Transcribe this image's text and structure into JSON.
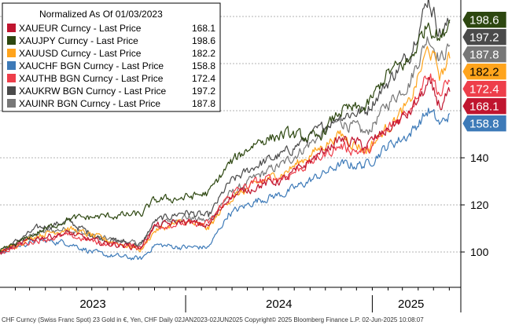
{
  "chart_data": {
    "type": "line",
    "legend_title": "Normalized As Of 01/03/2023",
    "legend_placement": "top-left",
    "grid": true,
    "ylim": [
      85,
      207
    ],
    "y_ticks": [
      100,
      120,
      140
    ],
    "x_range": [
      "2023-01-02",
      "2025-06-02"
    ],
    "x_tick_labels": [
      "2023",
      "2024",
      "2025"
    ],
    "series": [
      {
        "name": "XAUEUR Curncy - Last Price",
        "last_value": "168.1",
        "color": "#c0152f",
        "points": [
          [
            "2023-01-02",
            100
          ],
          [
            "2023-03-15",
            106
          ],
          [
            "2023-05-15",
            108
          ],
          [
            "2023-07-15",
            104
          ],
          [
            "2023-10-06",
            102
          ],
          [
            "2023-11-01",
            111
          ],
          [
            "2023-12-28",
            113
          ],
          [
            "2024-02-15",
            111
          ],
          [
            "2024-03-25",
            123
          ],
          [
            "2024-05-20",
            128
          ],
          [
            "2024-07-15",
            131
          ],
          [
            "2024-10-30",
            148
          ],
          [
            "2024-12-20",
            145
          ],
          [
            "2025-01-31",
            152
          ],
          [
            "2025-03-15",
            159
          ],
          [
            "2025-04-21",
            171
          ],
          [
            "2025-05-15",
            162
          ],
          [
            "2025-06-02",
            168.1
          ]
        ]
      },
      {
        "name": "XAUJPY Curncy - Last Price",
        "last_value": "198.6",
        "color": "#2d4710",
        "points": [
          [
            "2023-01-02",
            100
          ],
          [
            "2023-03-15",
            108
          ],
          [
            "2023-05-15",
            114
          ],
          [
            "2023-07-15",
            115
          ],
          [
            "2023-10-06",
            116
          ],
          [
            "2023-11-01",
            122
          ],
          [
            "2023-12-28",
            123
          ],
          [
            "2024-02-15",
            125
          ],
          [
            "2024-03-25",
            137
          ],
          [
            "2024-05-20",
            147
          ],
          [
            "2024-07-15",
            150
          ],
          [
            "2024-09-16",
            148
          ],
          [
            "2024-10-30",
            160
          ],
          [
            "2024-12-20",
            161
          ],
          [
            "2025-01-31",
            176
          ],
          [
            "2025-03-15",
            181
          ],
          [
            "2025-04-21",
            198
          ],
          [
            "2025-05-15",
            190
          ],
          [
            "2025-06-02",
            198.6
          ]
        ]
      },
      {
        "name": "XAUUSD Curncy - Last Price",
        "last_value": "182.2",
        "color": "#ffa41c",
        "points": [
          [
            "2023-01-02",
            100
          ],
          [
            "2023-03-15",
            107
          ],
          [
            "2023-05-15",
            110
          ],
          [
            "2023-07-15",
            106
          ],
          [
            "2023-10-06",
            101
          ],
          [
            "2023-11-01",
            109
          ],
          [
            "2023-12-28",
            113
          ],
          [
            "2024-02-15",
            110
          ],
          [
            "2024-03-25",
            122
          ],
          [
            "2024-05-20",
            129
          ],
          [
            "2024-07-15",
            134
          ],
          [
            "2024-10-30",
            150
          ],
          [
            "2024-12-20",
            143
          ],
          [
            "2025-01-31",
            153
          ],
          [
            "2025-03-15",
            163
          ],
          [
            "2025-04-21",
            187
          ],
          [
            "2025-05-15",
            175
          ],
          [
            "2025-06-02",
            182.2
          ]
        ]
      },
      {
        "name": "XAUCHF BGN Curncy - Last Price",
        "last_value": "158.8",
        "color": "#3d7ab8",
        "points": [
          [
            "2023-01-02",
            100
          ],
          [
            "2023-03-15",
            105
          ],
          [
            "2023-05-15",
            104
          ],
          [
            "2023-07-15",
            99
          ],
          [
            "2023-10-06",
            97
          ],
          [
            "2023-11-01",
            103
          ],
          [
            "2023-12-28",
            102
          ],
          [
            "2024-02-15",
            102
          ],
          [
            "2024-03-25",
            116
          ],
          [
            "2024-05-20",
            122
          ],
          [
            "2024-07-15",
            125
          ],
          [
            "2024-10-30",
            137
          ],
          [
            "2024-12-20",
            137
          ],
          [
            "2025-01-31",
            145
          ],
          [
            "2025-03-15",
            150
          ],
          [
            "2025-04-21",
            160
          ],
          [
            "2025-05-15",
            154
          ],
          [
            "2025-06-02",
            158.8
          ]
        ]
      },
      {
        "name": "XAUTHB BGN Curncy - Last Price",
        "last_value": "172.4",
        "color": "#ee3e4a",
        "points": [
          [
            "2023-01-02",
            100
          ],
          [
            "2023-03-15",
            105
          ],
          [
            "2023-05-15",
            107
          ],
          [
            "2023-07-15",
            104
          ],
          [
            "2023-10-06",
            102
          ],
          [
            "2023-11-01",
            111
          ],
          [
            "2023-12-28",
            112
          ],
          [
            "2024-02-15",
            112
          ],
          [
            "2024-03-25",
            124
          ],
          [
            "2024-05-20",
            130
          ],
          [
            "2024-07-15",
            132
          ],
          [
            "2024-10-30",
            145
          ],
          [
            "2024-12-20",
            142
          ],
          [
            "2025-01-31",
            152
          ],
          [
            "2025-03-15",
            161
          ],
          [
            "2025-04-21",
            177
          ],
          [
            "2025-05-15",
            167
          ],
          [
            "2025-06-02",
            172.4
          ]
        ]
      },
      {
        "name": "XAUKRW BGN Curncy - Last Price",
        "last_value": "197.2",
        "color": "#4a4a4a",
        "points": [
          [
            "2023-01-02",
            100
          ],
          [
            "2023-03-15",
            110
          ],
          [
            "2023-05-15",
            113
          ],
          [
            "2023-07-15",
            106
          ],
          [
            "2023-10-06",
            103
          ],
          [
            "2023-11-01",
            113
          ],
          [
            "2023-12-28",
            117
          ],
          [
            "2024-02-15",
            115
          ],
          [
            "2024-03-25",
            129
          ],
          [
            "2024-05-20",
            137
          ],
          [
            "2024-07-15",
            142
          ],
          [
            "2024-10-30",
            158
          ],
          [
            "2024-12-20",
            160
          ],
          [
            "2025-01-31",
            172
          ],
          [
            "2025-03-15",
            184
          ],
          [
            "2025-04-21",
            208
          ],
          [
            "2025-05-15",
            193
          ],
          [
            "2025-06-02",
            197.2
          ]
        ]
      },
      {
        "name": "XAUINR BGN Curncy - Last Price",
        "last_value": "187.8",
        "color": "#777777",
        "points": [
          [
            "2023-01-02",
            100
          ],
          [
            "2023-03-15",
            108
          ],
          [
            "2023-05-15",
            110
          ],
          [
            "2023-07-15",
            106
          ],
          [
            "2023-10-06",
            103
          ],
          [
            "2023-11-01",
            111
          ],
          [
            "2023-12-28",
            115
          ],
          [
            "2024-02-15",
            113
          ],
          [
            "2024-03-25",
            124
          ],
          [
            "2024-05-20",
            132
          ],
          [
            "2024-07-15",
            138
          ],
          [
            "2024-10-30",
            156
          ],
          [
            "2024-12-20",
            150
          ],
          [
            "2025-01-31",
            163
          ],
          [
            "2025-03-15",
            172
          ],
          [
            "2025-04-21",
            192
          ],
          [
            "2025-05-15",
            182
          ],
          [
            "2025-06-02",
            187.8
          ]
        ]
      }
    ],
    "footer": "CHF Curncy (Swiss Franc Spot) 23 Gold in €, Yen, CHF   Daily 02JAN2023-02JUN2025   Copyright© 2025 Bloomberg Finance L.P.   02-Jun-2025 10:08:07"
  },
  "colors": {
    "flag_text_dark": "#ffffff",
    "flag_text_light": "#000000"
  }
}
